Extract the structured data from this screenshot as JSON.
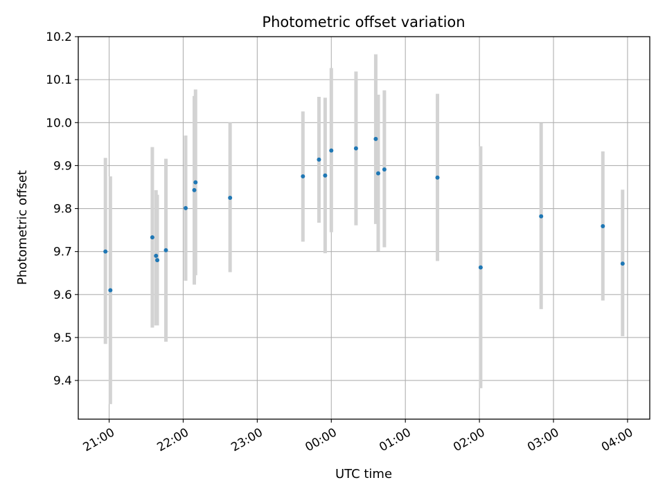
{
  "chart_data": {
    "type": "scatter",
    "title": "Photometric offset variation",
    "xlabel": "UTC time",
    "ylabel": "Photometric offset",
    "x_unit": "UTC date-time",
    "xlim": [
      "2023-01-01T20:35:00Z",
      "2023-01-02T04:18:00Z"
    ],
    "ylim": [
      9.31,
      10.2
    ],
    "x_ticks": [
      {
        "t": "2023-01-01T21:00:00Z",
        "label": "21:00"
      },
      {
        "t": "2023-01-01T22:00:00Z",
        "label": "22:00"
      },
      {
        "t": "2023-01-01T23:00:00Z",
        "label": "23:00"
      },
      {
        "t": "2023-01-02T00:00:00Z",
        "label": "00:00"
      },
      {
        "t": "2023-01-02T01:00:00Z",
        "label": "01:00"
      },
      {
        "t": "2023-01-02T02:00:00Z",
        "label": "02:00"
      },
      {
        "t": "2023-01-02T03:00:00Z",
        "label": "03:00"
      },
      {
        "t": "2023-01-02T04:00:00Z",
        "label": "04:00"
      }
    ],
    "y_ticks": [
      9.4,
      9.5,
      9.6,
      9.7,
      9.8,
      9.9,
      10.0,
      10.1,
      10.2
    ],
    "y_tick_labels": [
      "9.4",
      "9.5",
      "9.6",
      "9.7",
      "9.8",
      "9.9",
      "10.0",
      "10.1",
      "10.2"
    ],
    "grid": true,
    "colors": {
      "marker": "#1f77b4",
      "errorbar": "#d3d3d3",
      "grid": "#b0b0b0",
      "axes": "#000000"
    },
    "points": [
      {
        "t": "2023-01-01T20:57:00Z",
        "y": 9.7,
        "lo": 9.485,
        "hi": 9.918
      },
      {
        "t": "2023-01-01T21:01:00Z",
        "y": 9.61,
        "lo": 9.345,
        "hi": 9.875
      },
      {
        "t": "2023-01-01T21:35:00Z",
        "y": 9.733,
        "lo": 9.523,
        "hi": 9.943
      },
      {
        "t": "2023-01-01T21:38:00Z",
        "y": 9.69,
        "lo": 9.528,
        "hi": 9.843
      },
      {
        "t": "2023-01-01T21:39:00Z",
        "y": 9.68,
        "lo": 9.528,
        "hi": 9.832
      },
      {
        "t": "2023-01-01T21:46:00Z",
        "y": 9.703,
        "lo": 9.49,
        "hi": 9.916
      },
      {
        "t": "2023-01-01T22:02:00Z",
        "y": 9.801,
        "lo": 9.632,
        "hi": 9.97
      },
      {
        "t": "2023-01-01T22:09:00Z",
        "y": 9.843,
        "lo": 9.623,
        "hi": 10.062
      },
      {
        "t": "2023-01-01T22:10:00Z",
        "y": 9.861,
        "lo": 9.645,
        "hi": 10.077
      },
      {
        "t": "2023-01-01T22:38:00Z",
        "y": 9.825,
        "lo": 9.652,
        "hi": 10.0
      },
      {
        "t": "2023-01-01T23:37:00Z",
        "y": 9.875,
        "lo": 9.723,
        "hi": 10.026
      },
      {
        "t": "2023-01-01T23:50:00Z",
        "y": 9.914,
        "lo": 9.767,
        "hi": 10.06
      },
      {
        "t": "2023-01-01T23:55:00Z",
        "y": 9.877,
        "lo": 9.696,
        "hi": 10.058
      },
      {
        "t": "2023-01-02T00:00:00Z",
        "y": 9.935,
        "lo": 9.745,
        "hi": 10.127
      },
      {
        "t": "2023-01-02T00:20:00Z",
        "y": 9.94,
        "lo": 9.761,
        "hi": 10.119
      },
      {
        "t": "2023-01-02T00:36:00Z",
        "y": 9.962,
        "lo": 9.764,
        "hi": 10.159
      },
      {
        "t": "2023-01-02T00:38:00Z",
        "y": 9.882,
        "lo": 9.701,
        "hi": 10.065
      },
      {
        "t": "2023-01-02T00:43:00Z",
        "y": 9.891,
        "lo": 9.71,
        "hi": 10.075
      },
      {
        "t": "2023-01-02T01:26:00Z",
        "y": 9.872,
        "lo": 9.678,
        "hi": 10.067
      },
      {
        "t": "2023-01-02T02:01:00Z",
        "y": 9.663,
        "lo": 9.382,
        "hi": 9.945
      },
      {
        "t": "2023-01-02T02:50:00Z",
        "y": 9.782,
        "lo": 9.566,
        "hi": 9.999
      },
      {
        "t": "2023-01-02T03:40:00Z",
        "y": 9.759,
        "lo": 9.586,
        "hi": 9.933
      },
      {
        "t": "2023-01-02T03:56:00Z",
        "y": 9.672,
        "lo": 9.503,
        "hi": 9.844
      }
    ]
  }
}
